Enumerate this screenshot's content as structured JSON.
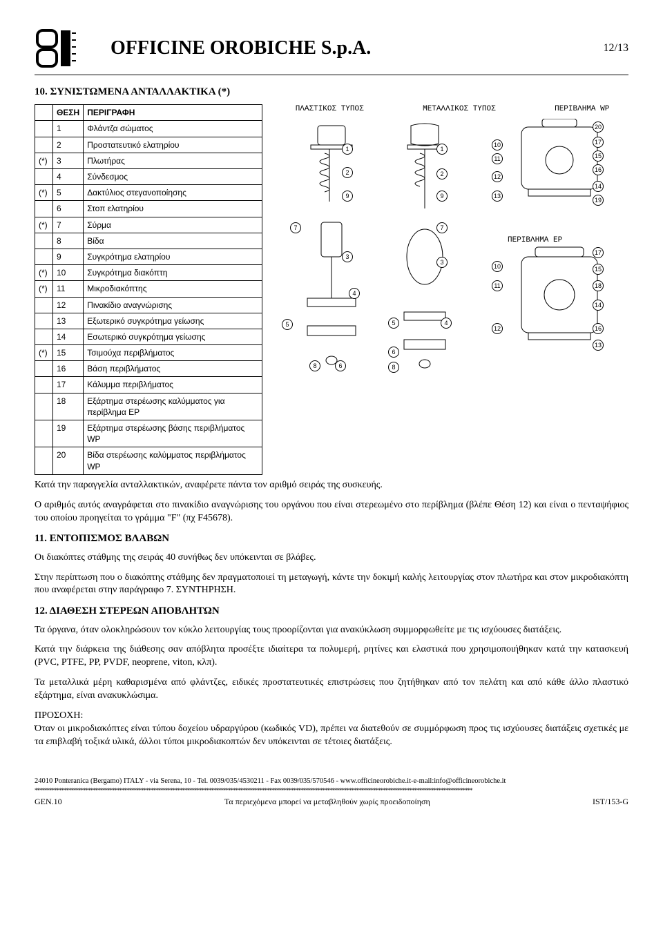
{
  "header": {
    "company": "OFFICINE OROBICHE  S.p.A.",
    "page": "12/13"
  },
  "section10": {
    "title": "10. ΣΥΝΙΣΤΩΜΕΝΑ ΑΝΤΑΛΛΑΚΤΙΚΑ (*)",
    "col_pos": "ΘΕΣΗ",
    "col_desc": "ΠΕΡΙΓΡΑΦΗ",
    "rows": [
      {
        "star": "",
        "n": "1",
        "d": "Φλάντζα σώματος"
      },
      {
        "star": "",
        "n": "2",
        "d": "Προστατευτικό ελατηρίου"
      },
      {
        "star": "(*)",
        "n": "3",
        "d": "Πλωτήρας"
      },
      {
        "star": "",
        "n": "4",
        "d": "Σύνδεσμος"
      },
      {
        "star": "(*)",
        "n": "5",
        "d": "Δακτύλιος στεγανοποίησης"
      },
      {
        "star": "",
        "n": "6",
        "d": "Στοπ ελατηρίου"
      },
      {
        "star": "(*)",
        "n": "7",
        "d": "Σύρμα"
      },
      {
        "star": "",
        "n": "8",
        "d": "Βίδα"
      },
      {
        "star": "",
        "n": "9",
        "d": "Συγκρότημα ελατηρίου"
      },
      {
        "star": "(*)",
        "n": "10",
        "d": "Συγκρότημα διακόπτη"
      },
      {
        "star": "(*)",
        "n": "11",
        "d": "Μικροδιακόπτης"
      },
      {
        "star": "",
        "n": "12",
        "d": "Πινακίδιο αναγνώρισης"
      },
      {
        "star": "",
        "n": "13",
        "d": "Εξωτερικό συγκρότημα γείωσης"
      },
      {
        "star": "",
        "n": "14",
        "d": "Εσωτερικό συγκρότημα γείωσης"
      },
      {
        "star": "(*)",
        "n": "15",
        "d": "Τσιμούχα περιβλήματος"
      },
      {
        "star": "",
        "n": "16",
        "d": "Βάση περιβλήματος"
      },
      {
        "star": "",
        "n": "17",
        "d": "Κάλυμμα περιβλήματος"
      },
      {
        "star": "",
        "n": "18",
        "d": "Εξάρτημα στερέωσης καλύμματος για περίβλημα EP"
      },
      {
        "star": "",
        "n": "19",
        "d": "Εξάρτημα στερέωσης βάσης περιβλήματος WP"
      },
      {
        "star": "",
        "n": "20",
        "d": "Βίδα στερέωσης καλύμματος περιβλήματος WP"
      }
    ]
  },
  "diagrams": {
    "label_plastic": "ΠΛΑΣΤΙΚΟΣ ΤΥΠΟΣ",
    "label_metal": "ΜΕΤΑΛΛΙΚΟΣ ΤΥΠΟΣ",
    "label_cover_wp": "ΠΕΡΙΒΛΗΜΑ WP",
    "label_cover_ep": "ΠΕΡΙΒΛΗΜΑ EP",
    "callouts_left": [
      "1",
      "2",
      "9",
      "7",
      "3",
      "4",
      "5",
      "6",
      "8"
    ],
    "callouts_mid": [
      "1",
      "2",
      "9",
      "7",
      "3",
      "5",
      "4",
      "6",
      "8"
    ],
    "callouts_wp": [
      "20",
      "17",
      "15",
      "16",
      "14",
      "19",
      "10",
      "11",
      "12",
      "13"
    ],
    "callouts_ep": [
      "17",
      "15",
      "18",
      "14",
      "16",
      "13",
      "10",
      "11",
      "12"
    ]
  },
  "body": {
    "p1": "Κατά την παραγγελία ανταλλακτικών, αναφέρετε πάντα τον αριθμό σειράς της συσκευής.",
    "p2": "Ο αριθμός αυτός αναγράφεται στο πινακίδιο αναγνώρισης του οργάνου που είναι στερεωμένο στο περίβλημα (βλέπε Θέση 12) και είναι ο πενταψήφιος του οποίου προηγείται το γράμμα \"F\" (πχ F45678).",
    "h11": "11. ΕΝΤΟΠΙΣΜΟΣ ΒΛΑΒΩΝ",
    "p11a": "Οι διακόπτες στάθμης της σειράς 40 συνήθως δεν υπόκεινται σε βλάβες.",
    "p11b": "Στην περίπτωση που ο διακόπτης στάθμης δεν πραγματοποιεί τη μεταγωγή, κάντε την δοκιμή καλής λειτουργίας στον πλωτήρα και στον μικροδιακόπτη που αναφέρεται στην παράγραφο 7. ΣΥΝΤΗΡΗΣΗ.",
    "h12": "12. ΔΙΑΘΕΣΗ ΣΤΕΡΕΩΝ ΑΠΟΒΛΗΤΩΝ",
    "p12a": "Τα όργανα, όταν ολοκληρώσουν τον κύκλο λειτουργίας τους προορίζονται για ανακύκλωση  συμμορφωθείτε με τις ισχύουσες διατάξεις.",
    "p12b": "Κατά την διάρκεια της διάθεσης σαν απόβλητα προσέξτε ιδιαίτερα τα πολυμερή, ρητίνες και ελαστικά που χρησιμοποιήθηκαν κατά την κατασκευή (PVC, PTFE, PP, PVDF, neoprene, viton, κλπ).",
    "p12c": "Τα μεταλλικά μέρη καθαρισμένα από φλάντζες, ειδικές προστατευτικές επιστρώσεις που ζητήθηκαν από τον πελάτη και από κάθε άλλο πλαστικό εξάρτημα, είναι ανακυκλώσιμα.",
    "p12d_label": "ΠΡΟΣΟΧΗ:",
    "p12d": "Όταν οι μικροδιακόπτες είναι τύπου δοχείου υδραργύρου (κωδικός VD), πρέπει να διατεθούν σε συμμόρφωση προς τις ισχύουσες διατάξεις σχετικές με τα επιβλαβή τοξικά υλικά, άλλοι τύποι μικροδιακοπτών δεν υπόκεινται σε τέτοιες διατάξεις."
  },
  "footer": {
    "address": "24010 Ponteranica (Bergamo) ITALY - via Serena, 10 - Tel. 0039/035/4530211 - Fax 0039/035/570546 - www.officineorobiche.it-e-mail:info@officineorobiche.it",
    "left": "GEN.10",
    "center": "Τα περιεχόμενα μπορεί να μεταβληθούν χωρίς προειδοποίηση",
    "right": "IST/153-G"
  },
  "style": {
    "page_bg": "#ffffff",
    "text_color": "#000000",
    "border_color": "#000000",
    "title_fontsize": 28,
    "body_fontsize": 14,
    "table_fontsize": 12
  }
}
